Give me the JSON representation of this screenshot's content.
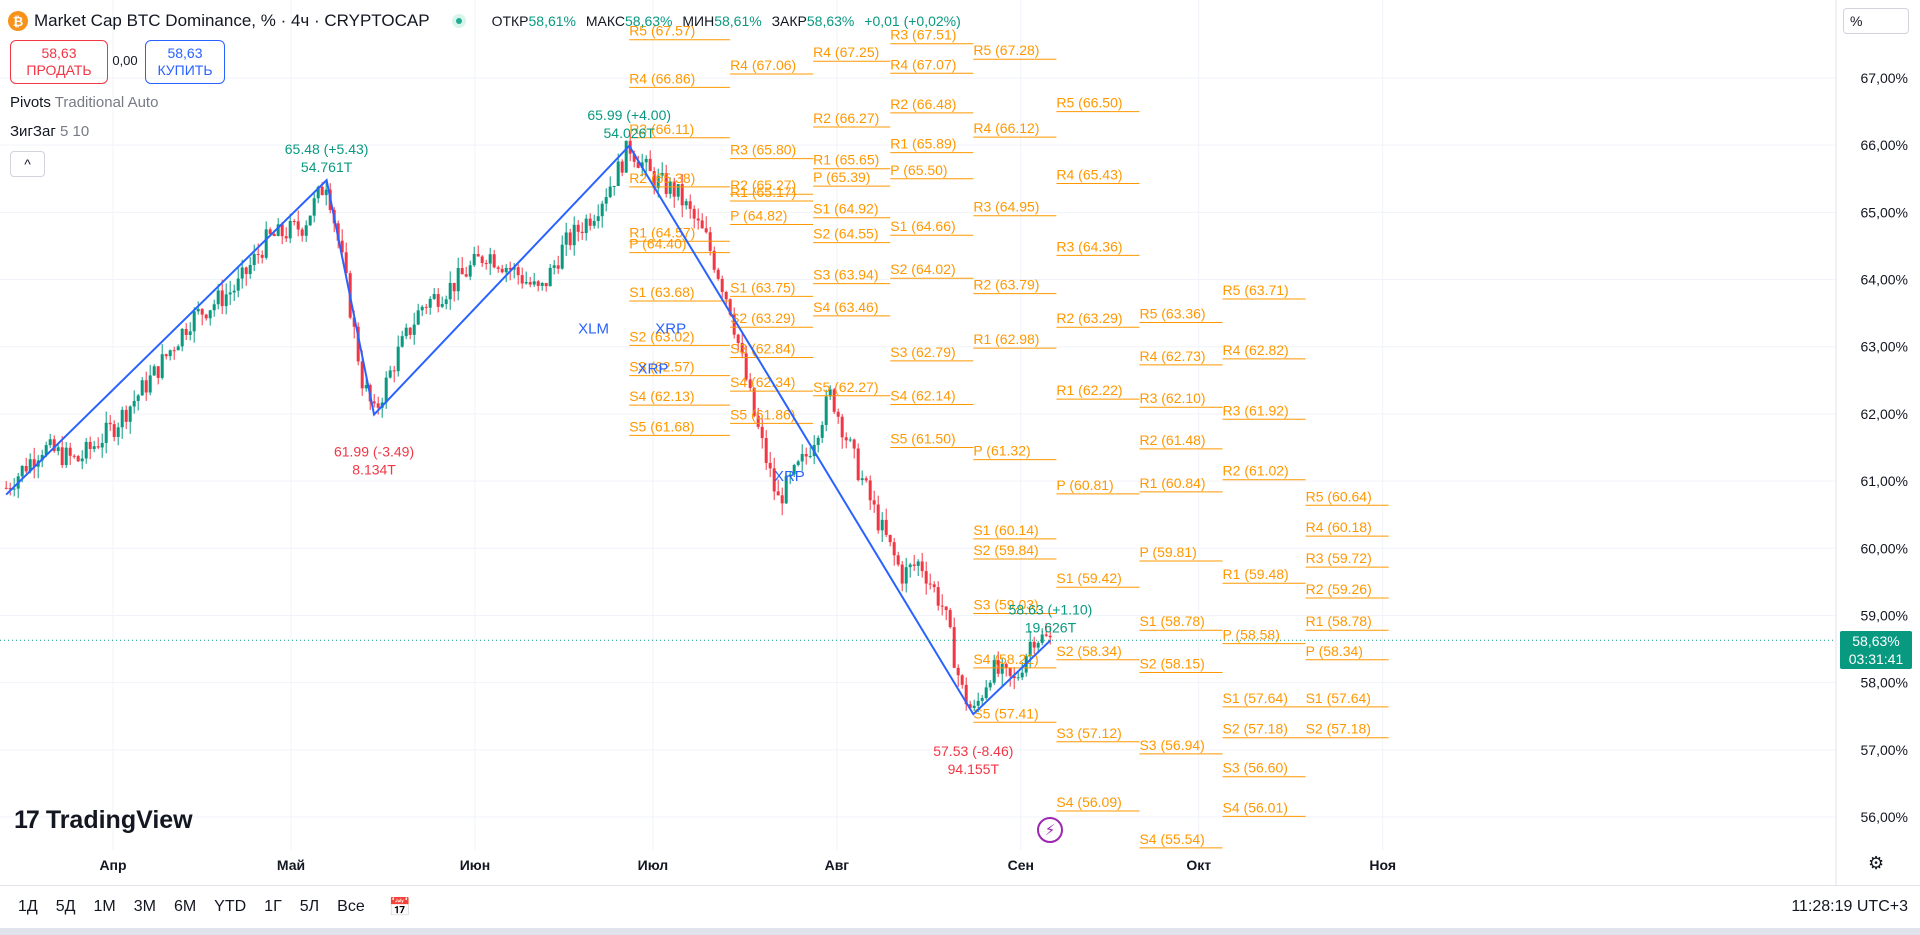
{
  "header": {
    "coin_icon": "₿",
    "title": "Market Cap BTC Dominance, % · 4ч · CRYPTOCAP",
    "ohlc": [
      {
        "label": "ОТКР",
        "value": "58,61%"
      },
      {
        "label": "МАКС",
        "value": "58,63%"
      },
      {
        "label": "МИН",
        "value": "58,61%"
      },
      {
        "label": "ЗАКР",
        "value": "58,63%"
      }
    ],
    "change": "+0,01 (+0,02%)"
  },
  "trade": {
    "sell_price": "58,63",
    "sell_label": "ПРОДАТЬ",
    "spread": "0,00",
    "buy_price": "58,63",
    "buy_label": "КУПИТЬ"
  },
  "indicators": [
    {
      "name": "Pivots",
      "params": "Traditional Auto"
    },
    {
      "name": "ЗигЗаг",
      "params": "5 10"
    }
  ],
  "collapse_icon": "^",
  "scale_mode": "%",
  "last_price": {
    "value": "58,63%",
    "countdown": "03:31:41"
  },
  "brand": {
    "mark": "17",
    "name": "TradingView"
  },
  "ranges": [
    "1Д",
    "5Д",
    "1М",
    "3М",
    "6М",
    "YTD",
    "1Г",
    "5Л",
    "Все"
  ],
  "clock": "11:28:19 UTC+3",
  "colors": {
    "up": "#089981",
    "down": "#f23645",
    "zigzag": "#2962ff",
    "pivot": "#ff9800",
    "grid": "#f0f3fa"
  },
  "chart_data": {
    "type": "candlestick",
    "y_unit": "%",
    "ylim": [
      55.7,
      67.6
    ],
    "y_ticks": [
      {
        "value": 67,
        "label": "67,00%"
      },
      {
        "value": 66,
        "label": "66,00%"
      },
      {
        "value": 65,
        "label": "65,00%"
      },
      {
        "value": 64,
        "label": "64,00%"
      },
      {
        "value": 63,
        "label": "63,00%"
      },
      {
        "value": 62,
        "label": "62,00%"
      },
      {
        "value": 61,
        "label": "61,00%"
      },
      {
        "value": 60,
        "label": "60,00%"
      },
      {
        "value": 59,
        "label": "59,00%"
      },
      {
        "value": 58,
        "label": "58,00%"
      },
      {
        "value": 57,
        "label": "57,00%"
      },
      {
        "value": 56,
        "label": "56,00%"
      }
    ],
    "x_ticks": [
      {
        "date": "2025-04-01",
        "label": "Апр"
      },
      {
        "date": "2025-05-01",
        "label": "Май"
      },
      {
        "date": "2025-06-01",
        "label": "Июн"
      },
      {
        "date": "2025-07-01",
        "label": "Июл"
      },
      {
        "date": "2025-08-01",
        "label": "Авг"
      },
      {
        "date": "2025-09-01",
        "label": "Сен"
      },
      {
        "date": "2025-10-01",
        "label": "Окт"
      },
      {
        "date": "2025-11-01",
        "label": "Ноя"
      }
    ],
    "price_path": [
      {
        "date": "2025-03-14",
        "value": 60.9
      },
      {
        "date": "2025-03-20",
        "value": 61.5
      },
      {
        "date": "2025-03-26",
        "value": 61.3
      },
      {
        "date": "2025-04-01",
        "value": 61.8
      },
      {
        "date": "2025-04-08",
        "value": 62.6
      },
      {
        "date": "2025-04-14",
        "value": 63.4
      },
      {
        "date": "2025-04-22",
        "value": 63.9
      },
      {
        "date": "2025-04-27",
        "value": 64.6
      },
      {
        "date": "2025-05-03",
        "value": 64.8
      },
      {
        "date": "2025-05-07",
        "value": 65.48
      },
      {
        "date": "2025-05-10",
        "value": 64.1
      },
      {
        "date": "2025-05-13",
        "value": 62.5
      },
      {
        "date": "2025-05-15",
        "value": 61.99
      },
      {
        "date": "2025-05-19",
        "value": 62.9
      },
      {
        "date": "2025-05-23",
        "value": 63.6
      },
      {
        "date": "2025-05-28",
        "value": 63.9
      },
      {
        "date": "2025-06-03",
        "value": 64.4
      },
      {
        "date": "2025-06-08",
        "value": 64.1
      },
      {
        "date": "2025-06-12",
        "value": 63.8
      },
      {
        "date": "2025-06-16",
        "value": 64.5
      },
      {
        "date": "2025-06-21",
        "value": 65.0
      },
      {
        "date": "2025-06-25",
        "value": 65.6
      },
      {
        "date": "2025-06-27",
        "value": 65.99
      },
      {
        "date": "2025-07-01",
        "value": 65.5
      },
      {
        "date": "2025-07-05",
        "value": 65.3
      },
      {
        "date": "2025-07-10",
        "value": 64.6
      },
      {
        "date": "2025-07-14",
        "value": 63.6
      },
      {
        "date": "2025-07-18",
        "value": 62.0
      },
      {
        "date": "2025-07-22",
        "value": 60.7
      },
      {
        "date": "2025-07-27",
        "value": 61.4
      },
      {
        "date": "2025-07-31",
        "value": 62.3
      },
      {
        "date": "2025-08-04",
        "value": 61.3
      },
      {
        "date": "2025-08-08",
        "value": 60.4
      },
      {
        "date": "2025-08-12",
        "value": 59.6
      },
      {
        "date": "2025-08-15",
        "value": 59.8
      },
      {
        "date": "2025-08-19",
        "value": 59.1
      },
      {
        "date": "2025-08-22",
        "value": 57.9
      },
      {
        "date": "2025-08-24",
        "value": 57.53
      },
      {
        "date": "2025-08-27",
        "value": 58.2
      },
      {
        "date": "2025-08-31",
        "value": 58.0
      },
      {
        "date": "2025-09-03",
        "value": 58.7
      },
      {
        "date": "2025-09-06",
        "value": 58.63
      }
    ],
    "zigzag": [
      {
        "date": "2025-03-14",
        "value": 60.8
      },
      {
        "date": "2025-05-07",
        "value": 65.48
      },
      {
        "date": "2025-05-15",
        "value": 61.99
      },
      {
        "date": "2025-06-27",
        "value": 65.99
      },
      {
        "date": "2025-08-24",
        "value": 57.53
      },
      {
        "date": "2025-09-06",
        "value": 58.63
      }
    ],
    "zigzag_labels": [
      {
        "date": "2025-05-07",
        "value": 65.48,
        "text": "65.48 (+5.43)",
        "volume": "54.761T",
        "color": "#089981",
        "pos": "above"
      },
      {
        "date": "2025-05-15",
        "value": 61.99,
        "text": "61.99 (-3.49)",
        "volume": "8.134T",
        "color": "#f23645",
        "pos": "below"
      },
      {
        "date": "2025-06-27",
        "value": 65.99,
        "text": "65.99 (+4.00)",
        "volume": "54.026T",
        "color": "#089981",
        "pos": "above"
      },
      {
        "date": "2025-08-24",
        "value": 57.53,
        "text": "57.53 (-8.46)",
        "volume": "94.155T",
        "color": "#f23645",
        "pos": "below"
      },
      {
        "date": "2025-09-06",
        "value": 58.63,
        "text": "58.63 (+1.10)",
        "volume": "19.626T",
        "color": "#089981",
        "pos": "above"
      }
    ],
    "symbol_labels": [
      {
        "date": "2025-06-21",
        "value": 63.2,
        "text": "XLM"
      },
      {
        "date": "2025-07-04",
        "value": 63.2,
        "text": "XRP"
      },
      {
        "date": "2025-07-01",
        "value": 62.6,
        "text": "XRP"
      },
      {
        "date": "2025-07-24",
        "value": 61.0,
        "text": "XRP"
      }
    ],
    "pivots": [
      {
        "start": "2025-06-27",
        "end": "2025-07-14",
        "levels": [
          {
            "name": "R5",
            "value": 67.57
          },
          {
            "name": "R4",
            "value": 66.86
          },
          {
            "name": "R3",
            "value": 66.11
          },
          {
            "name": "R2",
            "value": 65.38
          },
          {
            "name": "R1",
            "value": 64.57
          },
          {
            "name": "P",
            "value": 64.4
          },
          {
            "name": "S1",
            "value": 63.68
          },
          {
            "name": "S2",
            "value": 63.02
          },
          {
            "name": "S3",
            "value": 62.57
          },
          {
            "name": "S4",
            "value": 62.13
          },
          {
            "name": "S5",
            "value": 61.68
          }
        ]
      },
      {
        "start": "2025-07-14",
        "end": "2025-07-28",
        "levels": [
          {
            "name": "R4",
            "value": 67.06
          },
          {
            "name": "R3",
            "value": 65.8
          },
          {
            "name": "R2",
            "value": 65.27
          },
          {
            "name": "R1",
            "value": 65.17
          },
          {
            "name": "P",
            "value": 64.82
          },
          {
            "name": "S1",
            "value": 63.75
          },
          {
            "name": "S2",
            "value": 63.29
          },
          {
            "name": "S3",
            "value": 62.84
          },
          {
            "name": "S4",
            "value": 62.34
          },
          {
            "name": "S5",
            "value": 61.86
          }
        ]
      },
      {
        "start": "2025-07-28",
        "end": "2025-08-10",
        "levels": [
          {
            "name": "R4",
            "value": 67.25
          },
          {
            "name": "R2",
            "value": 66.27
          },
          {
            "name": "R1",
            "value": 65.65
          },
          {
            "name": "P",
            "value": 65.39
          },
          {
            "name": "S1",
            "value": 64.92
          },
          {
            "name": "S2",
            "value": 64.55
          },
          {
            "name": "S3",
            "value": 63.94
          },
          {
            "name": "S4",
            "value": 63.46
          },
          {
            "name": "S5",
            "value": 62.27
          }
        ]
      },
      {
        "start": "2025-08-10",
        "end": "2025-08-24",
        "levels": [
          {
            "name": "R3",
            "value": 67.51
          },
          {
            "name": "R4",
            "value": 67.07
          },
          {
            "name": "R2",
            "value": 66.48
          },
          {
            "name": "R1",
            "value": 65.89
          },
          {
            "name": "P",
            "value": 65.5
          },
          {
            "name": "S1",
            "value": 64.66
          },
          {
            "name": "S2",
            "value": 64.02
          },
          {
            "name": "S3",
            "value": 62.79
          },
          {
            "name": "S4",
            "value": 62.14
          },
          {
            "name": "S5",
            "value": 61.5
          }
        ]
      },
      {
        "start": "2025-08-24",
        "end": "2025-09-07",
        "levels": [
          {
            "name": "R5",
            "value": 67.28
          },
          {
            "name": "R4",
            "value": 66.12
          },
          {
            "name": "R3",
            "value": 64.95
          },
          {
            "name": "R2",
            "value": 63.79
          },
          {
            "name": "R1",
            "value": 62.98
          },
          {
            "name": "P",
            "value": 61.32
          },
          {
            "name": "S1",
            "value": 60.14
          },
          {
            "name": "S2",
            "value": 59.84
          },
          {
            "name": "S3",
            "value": 59.03
          },
          {
            "name": "S4",
            "value": 58.22
          },
          {
            "name": "S5",
            "value": 57.41
          }
        ]
      },
      {
        "start": "2025-09-07",
        "end": "2025-09-21",
        "levels": [
          {
            "name": "R5",
            "value": 66.5
          },
          {
            "name": "R4",
            "value": 65.43
          },
          {
            "name": "R3",
            "value": 64.36
          },
          {
            "name": "R2",
            "value": 63.29
          },
          {
            "name": "R1",
            "value": 62.22
          },
          {
            "name": "P",
            "value": 60.81
          },
          {
            "name": "S1",
            "value": 59.42
          },
          {
            "name": "S2",
            "value": 58.34
          },
          {
            "name": "S3",
            "value": 57.12
          },
          {
            "name": "S4",
            "value": 56.09
          }
        ]
      },
      {
        "start": "2025-09-21",
        "end": "2025-10-05",
        "levels": [
          {
            "name": "R5",
            "value": 63.36
          },
          {
            "name": "R4",
            "value": 62.73
          },
          {
            "name": "R3",
            "value": 62.1
          },
          {
            "name": "R2",
            "value": 61.48
          },
          {
            "name": "R1",
            "value": 60.84
          },
          {
            "name": "P",
            "value": 59.81
          },
          {
            "name": "S1",
            "value": 58.78
          },
          {
            "name": "S2",
            "value": 58.15
          },
          {
            "name": "S3",
            "value": 56.94
          },
          {
            "name": "S4",
            "value": 55.54
          }
        ]
      },
      {
        "start": "2025-10-05",
        "end": "2025-10-19",
        "levels": [
          {
            "name": "R5",
            "value": 63.71
          },
          {
            "name": "R4",
            "value": 62.82
          },
          {
            "name": "R3",
            "value": 61.92
          },
          {
            "name": "R2",
            "value": 61.02
          },
          {
            "name": "R1",
            "value": 59.48
          },
          {
            "name": "P",
            "value": 58.58
          },
          {
            "name": "S1",
            "value": 57.64
          },
          {
            "name": "S2",
            "value": 57.18
          },
          {
            "name": "S3",
            "value": 56.6
          },
          {
            "name": "S4",
            "value": 56.01
          }
        ]
      },
      {
        "start": "2025-10-19",
        "end": "2025-11-02",
        "levels": [
          {
            "name": "R5",
            "value": 60.64
          },
          {
            "name": "R4",
            "value": 60.18
          },
          {
            "name": "R3",
            "value": 59.72
          },
          {
            "name": "R2",
            "value": 59.26
          },
          {
            "name": "R1",
            "value": 58.78
          },
          {
            "name": "P",
            "value": 58.34
          },
          {
            "name": "S1",
            "value": 57.64
          },
          {
            "name": "S2",
            "value": 57.18
          }
        ]
      }
    ],
    "legend": "none",
    "grid": true
  }
}
